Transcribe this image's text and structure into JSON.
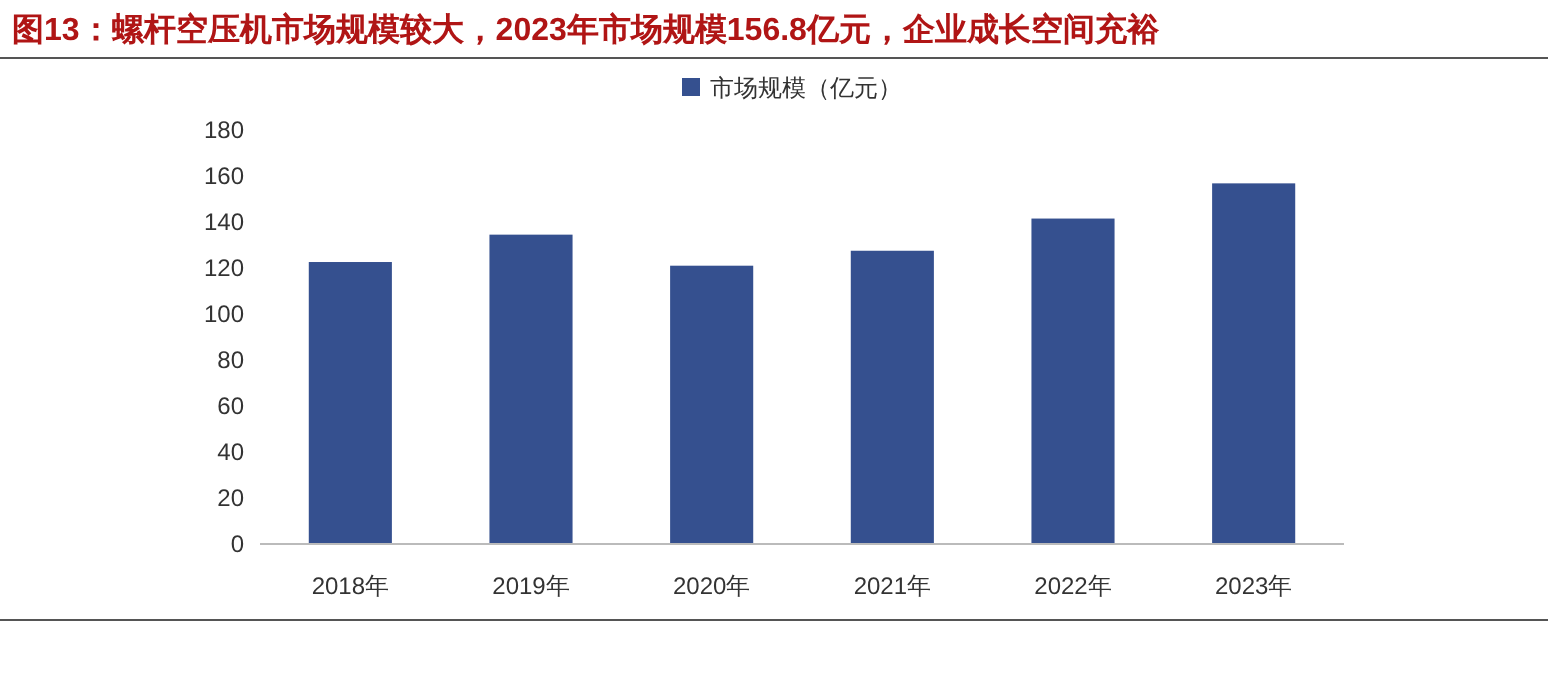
{
  "chart_data": {
    "type": "bar",
    "title": "图13：螺杆空压机市场规模较大，2023年市场规模156.8亿元，企业成长空间充裕",
    "categories": [
      "2018年",
      "2019年",
      "2020年",
      "2021年",
      "2022年",
      "2023年"
    ],
    "series": [
      {
        "name": "市场规模（亿元）",
        "color": "#35508f",
        "values": [
          122.6,
          134.5,
          121,
          127.5,
          141.5,
          156.8
        ]
      }
    ],
    "ylim": [
      0,
      180
    ],
    "yticks": [
      0,
      20,
      40,
      60,
      80,
      100,
      120,
      140,
      160,
      180
    ],
    "grid": false,
    "legend": "top"
  }
}
